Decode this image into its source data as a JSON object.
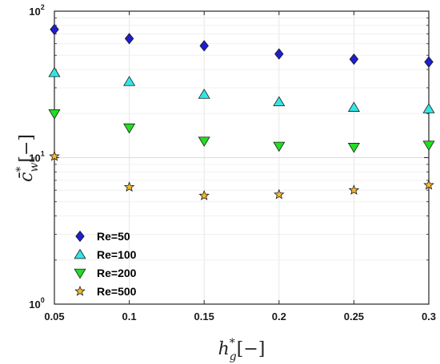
{
  "chart_data": {
    "type": "scatter",
    "x": [
      0.05,
      0.1,
      0.15,
      0.2,
      0.25,
      0.3
    ],
    "xlim": [
      0.05,
      0.3
    ],
    "ylim": [
      1,
      100
    ],
    "yscale": "log",
    "grid": true,
    "legend_position": "bottom-left",
    "xticklabels": [
      "0.05",
      "0.1",
      "0.15",
      "0.2",
      "0.25",
      "0.3"
    ],
    "xlabel": {
      "base": "h",
      "sup": "*",
      "sub": "g",
      "unit": "[−]"
    },
    "ylabel": {
      "base": "c̄",
      "sup": "*",
      "sub": "w",
      "unit": "[−]"
    },
    "yticks": [
      {
        "value": 1,
        "base": "10",
        "exp": "0"
      },
      {
        "value": 10,
        "base": "10",
        "exp": "1"
      },
      {
        "value": 100,
        "base": "10",
        "exp": "2"
      }
    ],
    "series": [
      {
        "name": "Re=50",
        "marker": "diamond",
        "color": "#1e1ed0",
        "values": [
          75,
          65,
          58,
          51,
          47,
          45
        ]
      },
      {
        "name": "Re=100",
        "marker": "triangle-up",
        "color": "#33e5e5",
        "values": [
          38,
          33,
          27,
          24,
          22,
          21.5
        ]
      },
      {
        "name": "Re=200",
        "marker": "triangle-down",
        "color": "#22dd22",
        "values": [
          20,
          16,
          13,
          12,
          11.8,
          12.2
        ]
      },
      {
        "name": "Re=500",
        "marker": "star",
        "color": "#f5b82e",
        "values": [
          10.2,
          6.3,
          5.5,
          5.6,
          6.0,
          6.5
        ]
      }
    ]
  }
}
